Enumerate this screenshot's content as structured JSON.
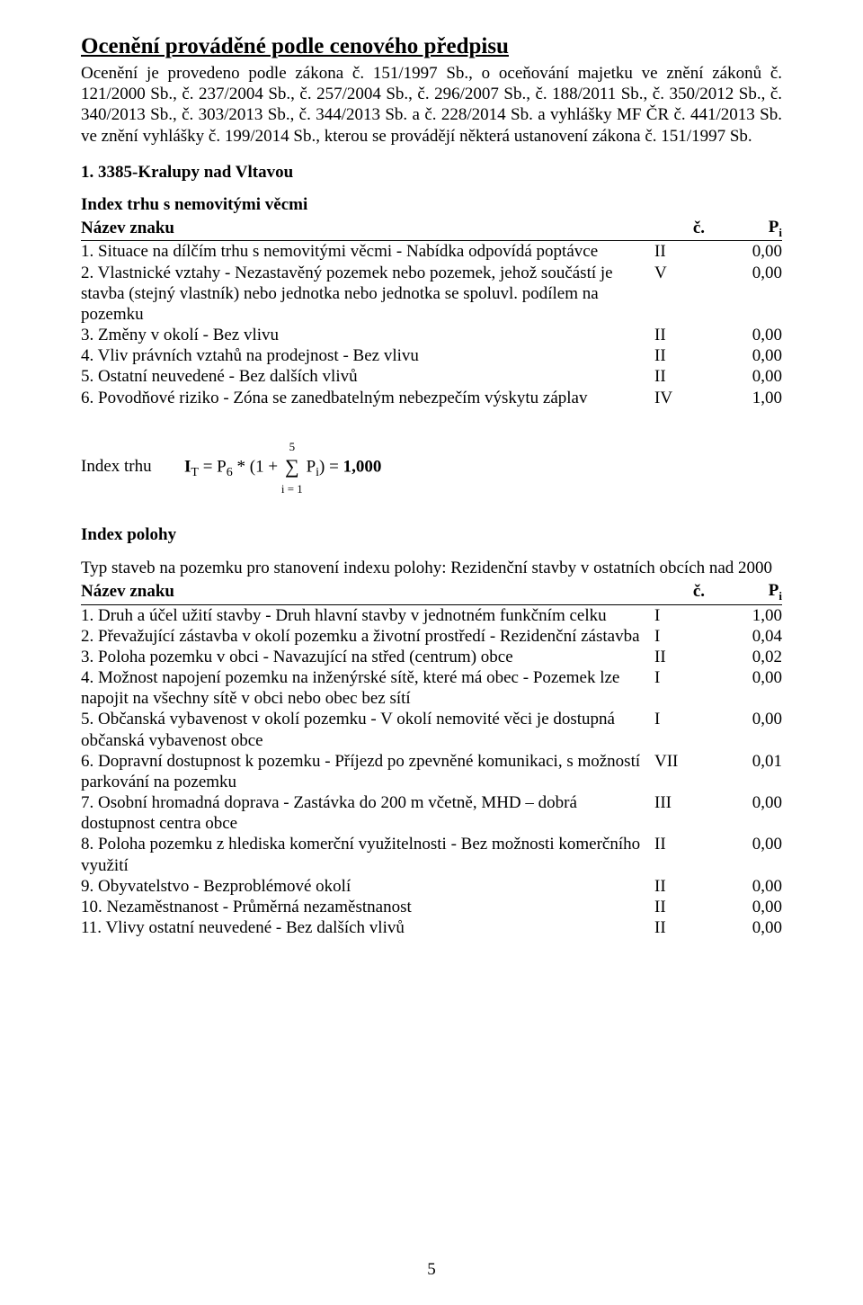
{
  "title": "Ocenění prováděné podle cenového předpisu",
  "intro": "Ocenění je provedeno podle zákona č. 151/1997 Sb., o oceňování majetku ve znění zákonů č. 121/2000 Sb., č. 237/2004 Sb., č. 257/2004 Sb., č. 296/2007 Sb., č. 188/2011 Sb., č. 350/2012 Sb., č. 340/2013 Sb., č. 303/2013 Sb., č. 344/2013 Sb. a č. 228/2014 Sb. a vyhlášky MF ČR č. 441/2013 Sb. ve znění vyhlášky č. 199/2014 Sb., kterou se provádějí některá ustanovení zákona č. 151/1997 Sb.",
  "section_heading": "1. 3385-Kralupy nad Vltavou",
  "index_trhu": {
    "title": "Index trhu s nemovitými věcmi",
    "header": {
      "name": "Název znaku",
      "c": "č.",
      "p": "Pi"
    },
    "rows": [
      {
        "text": "1. Situace na dílčím trhu s nemovitými věcmi - Nabídka odpovídá poptávce",
        "c": "II",
        "p": "0,00"
      },
      {
        "text": "2. Vlastnické vztahy - Nezastavěný pozemek nebo pozemek, jehož součástí je stavba (stejný vlastník) nebo jednotka nebo jednotka se spoluvl. podílem na pozemku",
        "c": "V",
        "p": "0,00"
      },
      {
        "text": "3. Změny v okolí - Bez vlivu",
        "c": "II",
        "p": "0,00"
      },
      {
        "text": "4. Vliv právních vztahů na prodejnost - Bez vlivu",
        "c": "II",
        "p": "0,00"
      },
      {
        "text": "5. Ostatní neuvedené - Bez dalších vlivů",
        "c": "II",
        "p": "0,00"
      },
      {
        "text": "6. Povodňové riziko - Zóna se zanedbatelným nebezpečím výskytu záplav",
        "c": "IV",
        "p": "1,00"
      }
    ]
  },
  "formula": {
    "label": "Index trhu",
    "body_prefix": "IT = P6 * (1 + ",
    "sigma_top": "5",
    "sigma_bot": "i = 1",
    "body_suffix": " Pi) = ",
    "result": "1,000"
  },
  "index_polohy": {
    "title": "Index polohy",
    "preamble": "Typ staveb na pozemku pro stanovení indexu polohy: Rezidenční stavby v ostatních obcích nad 2000",
    "header": {
      "name": "Název znaku",
      "c": "č.",
      "p": "Pi"
    },
    "rows": [
      {
        "text": "1. Druh a účel užití stavby - Druh hlavní stavby v jednotném funkčním celku",
        "c": "I",
        "p": "1,00"
      },
      {
        "text": "2. Převažující zástavba v okolí pozemku a životní prostředí - Rezidenční zástavba",
        "c": "I",
        "p": "0,04"
      },
      {
        "text": "3. Poloha pozemku v obci - Navazující na střed (centrum) obce",
        "c": "II",
        "p": "0,02"
      },
      {
        "text": "4. Možnost napojení pozemku na inženýrské sítě, které má obec - Pozemek lze napojit na všechny sítě v obci nebo obec bez sítí",
        "c": "I",
        "p": "0,00"
      },
      {
        "text": "5. Občanská vybavenost v okolí pozemku - V okolí nemovité věci je dostupná občanská vybavenost obce",
        "c": "I",
        "p": "0,00"
      },
      {
        "text": "6. Dopravní dostupnost k pozemku - Příjezd po zpevněné komunikaci, s možností parkování na pozemku",
        "c": "VII",
        "p": "0,01"
      },
      {
        "text": "7. Osobní hromadná doprava - Zastávka do 200 m včetně, MHD – dobrá dostupnost centra obce",
        "c": "III",
        "p": "0,00"
      },
      {
        "text": "8. Poloha pozemku z hlediska komerční využitelnosti - Bez možnosti komerčního využití",
        "c": "II",
        "p": "0,00"
      },
      {
        "text": "9. Obyvatelstvo - Bezproblémové okolí",
        "c": "II",
        "p": "0,00"
      },
      {
        "text": "10. Nezaměstnanost - Průměrná nezaměstnanost",
        "c": "II",
        "p": "0,00"
      },
      {
        "text": "11. Vlivy ostatní neuvedené - Bez dalších vlivů",
        "c": "II",
        "p": "0,00"
      }
    ]
  },
  "page_number": "5"
}
